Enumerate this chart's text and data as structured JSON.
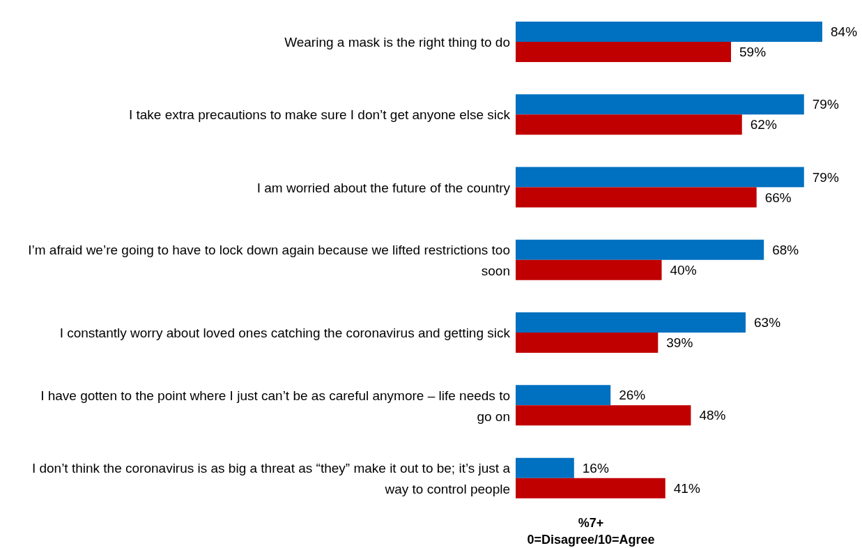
{
  "chart_data": {
    "type": "bar",
    "orientation": "horizontal",
    "xlabel": "%7+\n0=Disagree/10=Agree",
    "categories": [
      "Wearing a mask is the right thing to do",
      "I take extra precautions to make sure I don’t get anyone else sick",
      "I am worried about the future of the country",
      "I’m afraid we’re going to have to lock down again because we lifted restrictions too soon",
      "I constantly worry about loved ones catching the coronavirus and getting sick",
      "I have gotten to the point where I just can’t be as careful anymore – life needs to go on",
      "I don’t think the coronavirus is as big a threat as “they” make it out to be; it’s just a way to control people"
    ],
    "series": [
      {
        "color": "#0070c0",
        "values": [
          84,
          79,
          79,
          68,
          63,
          26,
          16
        ],
        "value_labels": [
          "84%",
          "79%",
          "79%",
          "68%",
          "63%",
          "26%",
          "16%"
        ]
      },
      {
        "color": "#c00000",
        "values": [
          59,
          62,
          66,
          40,
          39,
          48,
          41
        ],
        "value_labels": [
          "59%",
          "62%",
          "66%",
          "40%",
          "39%",
          "48%",
          "41%"
        ]
      }
    ],
    "grid": false,
    "legend": false
  }
}
